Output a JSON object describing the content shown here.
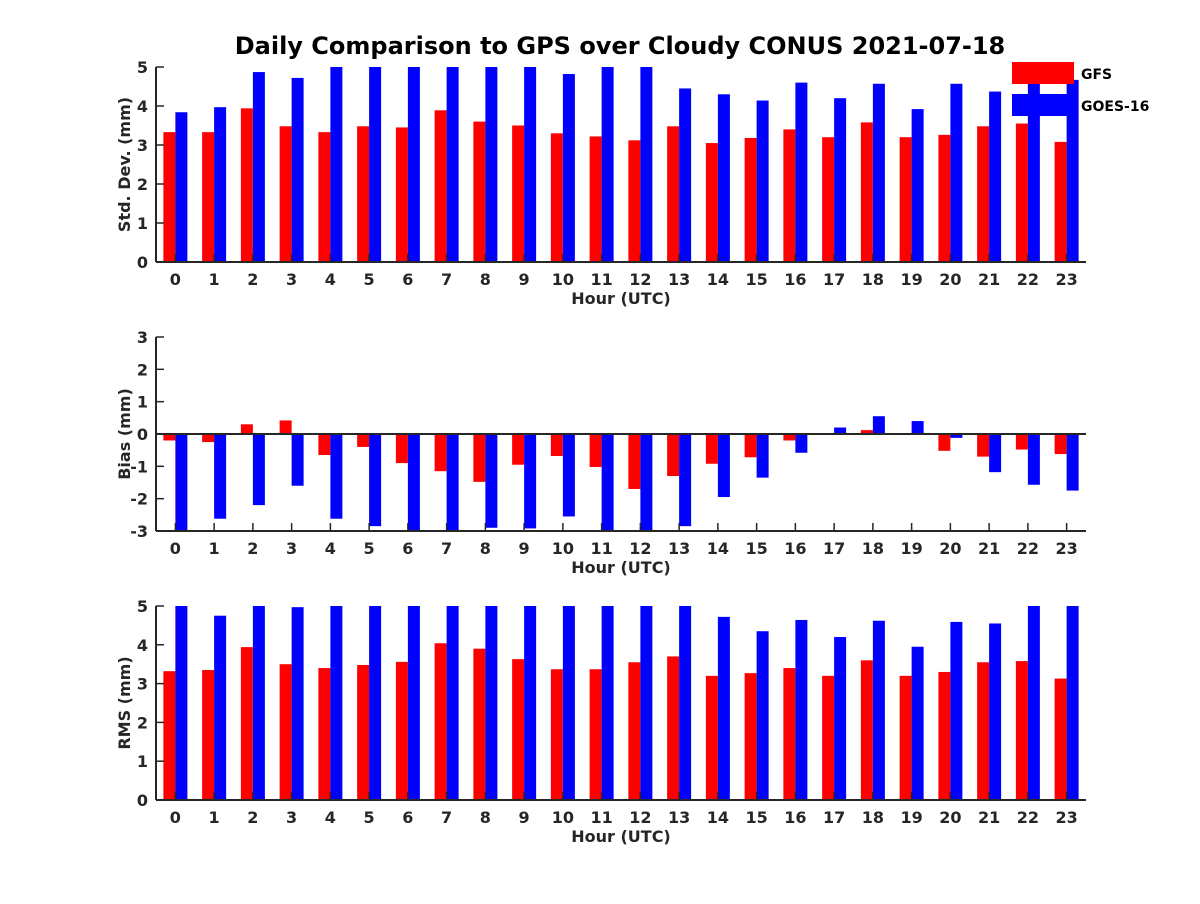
{
  "figure_title": "Daily Comparison to GPS over Cloudy CONUS 2021-07-18",
  "colors": {
    "GFS": "#ff0000",
    "GOES-16": "#0000ff",
    "axis": "#262626",
    "text": "#262626"
  },
  "legend": {
    "placement": "top-right",
    "items": [
      "GFS",
      "GOES-16"
    ]
  },
  "chart_data": [
    {
      "type": "bar",
      "title": "Daily Comparison to GPS over Cloudy CONUS 2021-07-18",
      "xlabel": "Hour (UTC)",
      "ylabel": "Std. Dev. (mm)",
      "ylim": [
        0,
        5
      ],
      "yticks": [
        0,
        1,
        2,
        3,
        4,
        5
      ],
      "categories": [
        "0",
        "1",
        "2",
        "3",
        "4",
        "5",
        "6",
        "7",
        "8",
        "9",
        "10",
        "11",
        "12",
        "13",
        "14",
        "15",
        "16",
        "17",
        "18",
        "19",
        "20",
        "21",
        "22",
        "23"
      ],
      "series": [
        {
          "name": "GFS",
          "values": [
            3.33,
            3.33,
            3.94,
            3.48,
            3.33,
            3.48,
            3.45,
            3.89,
            3.6,
            3.5,
            3.3,
            3.22,
            3.12,
            3.48,
            3.05,
            3.18,
            3.4,
            3.2,
            3.58,
            3.2,
            3.26,
            3.48,
            3.55,
            3.08
          ]
        },
        {
          "name": "GOES-16",
          "values": [
            3.84,
            3.97,
            4.87,
            4.72,
            5.0,
            5.0,
            5.0,
            5.0,
            5.0,
            5.0,
            4.82,
            5.0,
            5.0,
            4.45,
            4.3,
            4.14,
            4.6,
            4.2,
            4.57,
            3.92,
            4.57,
            4.37,
            4.92,
            4.67
          ]
        }
      ],
      "grid": false,
      "legend": "top-right"
    },
    {
      "type": "bar",
      "xlabel": "Hour (UTC)",
      "ylabel": "Bias (mm)",
      "ylim": [
        -3,
        3
      ],
      "yticks": [
        -3,
        -2,
        -1,
        0,
        1,
        2,
        3
      ],
      "categories": [
        "0",
        "1",
        "2",
        "3",
        "4",
        "5",
        "6",
        "7",
        "8",
        "9",
        "10",
        "11",
        "12",
        "13",
        "14",
        "15",
        "16",
        "17",
        "18",
        "19",
        "20",
        "21",
        "22",
        "23"
      ],
      "series": [
        {
          "name": "GFS",
          "values": [
            -0.2,
            -0.25,
            0.3,
            0.42,
            -0.65,
            -0.4,
            -0.9,
            -1.15,
            -1.48,
            -0.95,
            -0.68,
            -1.02,
            -1.7,
            -1.3,
            -0.92,
            -0.72,
            -0.2,
            -0.03,
            0.12,
            0.02,
            -0.52,
            -0.7,
            -0.48,
            -0.62
          ]
        },
        {
          "name": "GOES-16",
          "values": [
            -3.0,
            -2.62,
            -2.2,
            -1.6,
            -2.62,
            -2.85,
            -3.0,
            -3.0,
            -2.9,
            -2.92,
            -2.55,
            -3.0,
            -3.0,
            -2.85,
            -1.95,
            -1.35,
            -0.58,
            0.2,
            0.55,
            0.4,
            -0.12,
            -1.18,
            -1.57,
            -1.75
          ]
        }
      ],
      "grid": false
    },
    {
      "type": "bar",
      "xlabel": "Hour (UTC)",
      "ylabel": "RMS (mm)",
      "ylim": [
        0,
        5
      ],
      "yticks": [
        0,
        1,
        2,
        3,
        4,
        5
      ],
      "categories": [
        "0",
        "1",
        "2",
        "3",
        "4",
        "5",
        "6",
        "7",
        "8",
        "9",
        "10",
        "11",
        "12",
        "13",
        "14",
        "15",
        "16",
        "17",
        "18",
        "19",
        "20",
        "21",
        "22",
        "23"
      ],
      "series": [
        {
          "name": "GFS",
          "values": [
            3.32,
            3.35,
            3.94,
            3.5,
            3.4,
            3.48,
            3.56,
            4.04,
            3.9,
            3.63,
            3.37,
            3.37,
            3.55,
            3.7,
            3.2,
            3.27,
            3.4,
            3.2,
            3.6,
            3.2,
            3.3,
            3.55,
            3.58,
            3.13
          ]
        },
        {
          "name": "GOES-16",
          "values": [
            5.0,
            4.75,
            5.0,
            4.97,
            5.0,
            5.0,
            5.0,
            5.0,
            5.0,
            5.0,
            5.0,
            5.0,
            5.0,
            5.0,
            4.72,
            4.35,
            4.64,
            4.2,
            4.62,
            3.95,
            4.59,
            4.55,
            5.0,
            5.0
          ]
        }
      ],
      "grid": false
    }
  ]
}
